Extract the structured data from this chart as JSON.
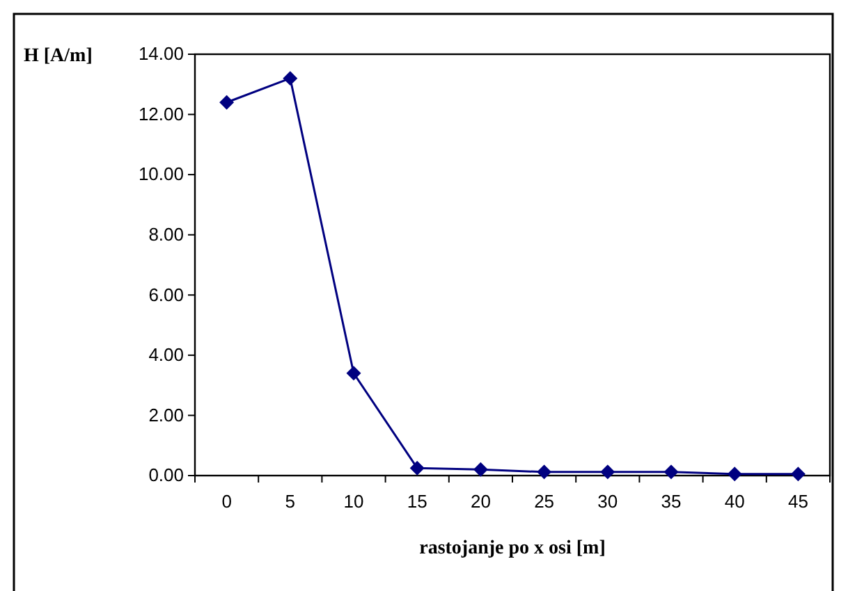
{
  "chart_data": {
    "type": "line",
    "ylabel": "H [A/m]",
    "xlabel": "rastojanje po x osi [m]",
    "categories": [
      "0",
      "5",
      "10",
      "15",
      "20",
      "25",
      "30",
      "35",
      "40",
      "45"
    ],
    "series": [
      {
        "color": "#000080",
        "values": [
          12.4,
          13.2,
          3.4,
          0.25,
          0.2,
          0.12,
          0.12,
          0.12,
          0.05,
          0.05
        ]
      }
    ],
    "ylim": [
      0,
      14
    ],
    "yticks": [
      {
        "value": 0,
        "label": "0.00"
      },
      {
        "value": 2,
        "label": "2.00"
      },
      {
        "value": 4,
        "label": "4.00"
      },
      {
        "value": 6,
        "label": "6.00"
      },
      {
        "value": 8,
        "label": "8.00"
      },
      {
        "value": 10,
        "label": "10.00"
      },
      {
        "value": 12,
        "label": "12.00"
      },
      {
        "value": 14,
        "label": "14.00"
      }
    ],
    "marker": "diamond"
  }
}
